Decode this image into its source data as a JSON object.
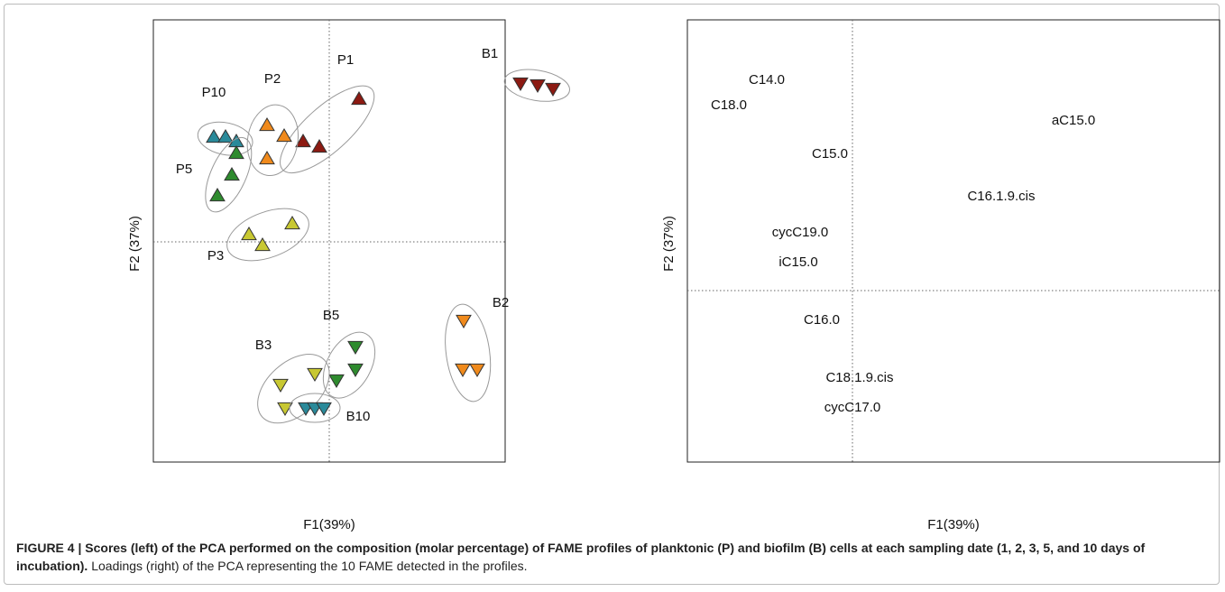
{
  "chart_data": [
    {
      "type": "scatter",
      "x_label": "F1(39%)",
      "y_label": "F2 (37%)",
      "xlim": [
        -1.95,
        1.95
      ],
      "ylim": [
        -2.44,
        2.46
      ],
      "series": [
        {
          "name": "P1",
          "color": "#8c1a12",
          "marker": "triangle-up",
          "x": [
            0.33,
            -0.29,
            -0.11
          ],
          "y": [
            1.58,
            1.11,
            1.05
          ]
        },
        {
          "name": "P2",
          "color": "#f08a1c",
          "marker": "triangle-up",
          "x": [
            -0.69,
            -0.5,
            -0.69
          ],
          "y": [
            1.29,
            1.17,
            0.92
          ]
        },
        {
          "name": "P10",
          "color": "#2a8a9a",
          "marker": "triangle-up",
          "x": [
            -1.28,
            -1.15,
            -1.03
          ],
          "y": [
            1.16,
            1.16,
            1.11
          ]
        },
        {
          "name": "P5",
          "color": "#2e8b2e",
          "marker": "triangle-up",
          "x": [
            -1.03,
            -1.08,
            -1.24
          ],
          "y": [
            0.98,
            0.74,
            0.51
          ]
        },
        {
          "name": "P3",
          "color": "#c8c832",
          "marker": "triangle-up",
          "x": [
            -0.89,
            -0.74,
            -0.41
          ],
          "y": [
            0.08,
            -0.04,
            0.2
          ]
        },
        {
          "name": "B1",
          "color": "#8c1a12",
          "marker": "triangle-down",
          "x": [
            2.12,
            2.31,
            2.48
          ],
          "y": [
            1.76,
            1.74,
            1.7
          ]
        },
        {
          "name": "B2",
          "color": "#f08a1c",
          "marker": "triangle-down",
          "x": [
            1.49,
            1.48,
            1.64
          ],
          "y": [
            -0.87,
            -1.41,
            -1.41
          ]
        },
        {
          "name": "B5",
          "color": "#2e8b2e",
          "marker": "triangle-down",
          "x": [
            0.29,
            0.29,
            0.08
          ],
          "y": [
            -1.16,
            -1.41,
            -1.53
          ]
        },
        {
          "name": "B3",
          "color": "#c8c832",
          "marker": "triangle-down",
          "x": [
            -0.16,
            -0.54,
            -0.49
          ],
          "y": [
            -1.46,
            -1.58,
            -1.84
          ]
        },
        {
          "name": "B10",
          "color": "#2a8a9a",
          "marker": "triangle-down",
          "x": [
            -0.26,
            -0.16,
            -0.06
          ],
          "y": [
            -1.84,
            -1.84,
            -1.84
          ]
        }
      ]
    },
    {
      "type": "loadings",
      "x_label": "F1(39%)",
      "y_label": "F2 (37%)",
      "xlim": [
        -1.83,
        4.07
      ],
      "ylim": [
        -1.9,
        3.0
      ],
      "labels": [
        "C14.0",
        "C18.0",
        "aC15.0",
        "C15.0",
        "C16.1.9.cis",
        "cycC19.0",
        "iC15.0",
        "C16.0",
        "C18.1.9.cis",
        "cycC17.0"
      ],
      "x": [
        -0.95,
        -1.37,
        2.45,
        -0.25,
        1.65,
        -0.58,
        -0.6,
        -0.34,
        0.08,
        0.0
      ],
      "y": [
        2.33,
        2.05,
        1.88,
        1.51,
        1.04,
        0.64,
        0.31,
        -0.33,
        -0.97,
        -1.3
      ]
    }
  ],
  "caption": {
    "bold": "FIGURE 4 | Scores (left) of the PCA performed on the composition (molar percentage) of FAME profiles of planktonic (P) and biofilm (B) cells at each sampling date (1, 2, 3, 5, and 10 days of incubation).",
    "text": " Loadings (right) of the PCA representing the 10 FAME detected in the profiles."
  }
}
